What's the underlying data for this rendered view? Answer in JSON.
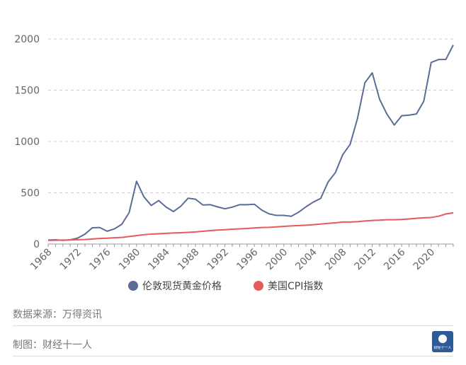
{
  "chart_data": {
    "type": "line",
    "title": "",
    "xlabel": "",
    "ylabel": "",
    "xlim": [
      1968,
      2023
    ],
    "ylim": [
      0,
      2000
    ],
    "yticks": [
      0,
      500,
      1000,
      1500,
      2000
    ],
    "xticks": [
      1968,
      1972,
      1976,
      1980,
      1984,
      1988,
      1992,
      1996,
      2000,
      2004,
      2008,
      2012,
      2016,
      2020
    ],
    "grid": "horizontal-dashed",
    "legend_position": "bottom",
    "x": [
      1968,
      1969,
      1970,
      1971,
      1972,
      1973,
      1974,
      1975,
      1976,
      1977,
      1978,
      1979,
      1980,
      1981,
      1982,
      1983,
      1984,
      1985,
      1986,
      1987,
      1988,
      1989,
      1990,
      1991,
      1992,
      1993,
      1994,
      1995,
      1996,
      1997,
      1998,
      1999,
      2000,
      2001,
      2002,
      2003,
      2004,
      2005,
      2006,
      2007,
      2008,
      2009,
      2010,
      2011,
      2012,
      2013,
      2014,
      2015,
      2016,
      2017,
      2018,
      2019,
      2020,
      2021,
      2022,
      2023
    ],
    "series": [
      {
        "name": "伦敦现货黄金价格",
        "color": "#5b6d97",
        "values": [
          39,
          41,
          36,
          41,
          58,
          97,
          159,
          161,
          125,
          148,
          193,
          307,
          612,
          460,
          376,
          424,
          361,
          317,
          368,
          447,
          437,
          381,
          384,
          362,
          344,
          360,
          384,
          384,
          388,
          331,
          294,
          279,
          279,
          271,
          310,
          363,
          409,
          445,
          604,
          697,
          872,
          972,
          1225,
          1572,
          1669,
          1411,
          1266,
          1160,
          1251,
          1257,
          1268,
          1393,
          1770,
          1799,
          1800,
          1941
        ]
      },
      {
        "name": "美国CPI指数",
        "color": "#e45b5b",
        "values": [
          35,
          37,
          39,
          40,
          42,
          44,
          49,
          54,
          57,
          61,
          65,
          73,
          82,
          91,
          97,
          100,
          104,
          108,
          110,
          114,
          118,
          124,
          131,
          136,
          140,
          145,
          148,
          152,
          157,
          161,
          163,
          167,
          172,
          177,
          180,
          184,
          189,
          195,
          202,
          207,
          215,
          215,
          218,
          225,
          230,
          233,
          237,
          237,
          240,
          245,
          251,
          256,
          259,
          271,
          293,
          304
        ]
      }
    ]
  },
  "footer": {
    "source": "数据来源：万得资讯",
    "maker": "制图：财经十一人",
    "logo_text": "财经十一人"
  }
}
